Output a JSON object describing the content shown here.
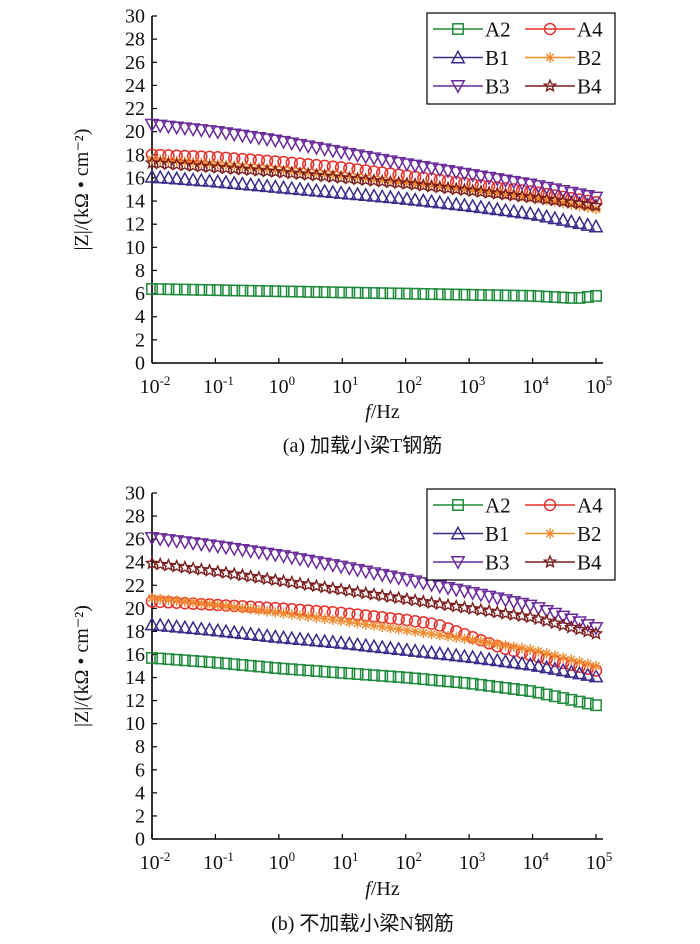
{
  "chart_data": [
    {
      "type": "scatter",
      "title": "(a) 加载小梁T钢筋",
      "xlabel_italic": "f",
      "xlabel_rest": "/Hz",
      "ylabel": "|Z|/(kΩ • cm⁻²)",
      "xscale": "log",
      "xlim": [
        0.01,
        100000
      ],
      "ylim": [
        0,
        30
      ],
      "yticks": [
        "0",
        "2",
        "4",
        "6",
        "8",
        "10",
        "12",
        "14",
        "16",
        "18",
        "20",
        "22",
        "24",
        "26",
        "28",
        "30"
      ],
      "xticks": [
        {
          "base": "10",
          "exp": "-2"
        },
        {
          "base": "10",
          "exp": "-1"
        },
        {
          "base": "10",
          "exp": "0"
        },
        {
          "base": "10",
          "exp": "1"
        },
        {
          "base": "10",
          "exp": "2"
        },
        {
          "base": "10",
          "exp": "3"
        },
        {
          "base": "10",
          "exp": "4"
        },
        {
          "base": "10",
          "exp": "5"
        }
      ],
      "legend_position": "top-right",
      "series": [
        {
          "name": "A2",
          "marker": "square",
          "color": "#1e8a3c",
          "x_log": [
            -2,
            -1,
            0,
            1,
            2,
            3,
            4,
            4.7,
            5
          ],
          "y": [
            6.4,
            6.3,
            6.2,
            6.1,
            6.0,
            5.9,
            5.8,
            5.6,
            5.8
          ]
        },
        {
          "name": "A4",
          "marker": "circle",
          "color": "#e8302a",
          "x_log": [
            -2,
            -1,
            0,
            1,
            2,
            3,
            4,
            5
          ],
          "y": [
            18.0,
            17.8,
            17.4,
            16.9,
            16.2,
            15.5,
            14.8,
            13.9
          ]
        },
        {
          "name": "B1",
          "marker": "triangle-up",
          "color": "#3b2a8c",
          "x_log": [
            -2,
            -1,
            0,
            1,
            2,
            3,
            4,
            5
          ],
          "y": [
            16.1,
            15.7,
            15.2,
            14.7,
            14.2,
            13.6,
            12.9,
            11.8
          ]
        },
        {
          "name": "B2",
          "marker": "asterisk",
          "color": "#f28a2e",
          "x_log": [
            -2,
            -1,
            0,
            1,
            2,
            3,
            4,
            5
          ],
          "y": [
            17.6,
            17.2,
            16.7,
            16.2,
            15.6,
            15.0,
            14.3,
            13.3
          ]
        },
        {
          "name": "B3",
          "marker": "triangle-down",
          "color": "#6a2a9c",
          "x_log": [
            -2,
            -1,
            0,
            1,
            2,
            3,
            4,
            5
          ],
          "y": [
            20.6,
            20.0,
            19.2,
            18.2,
            17.2,
            16.3,
            15.4,
            14.3
          ]
        },
        {
          "name": "B4",
          "marker": "star",
          "color": "#7a1e1e",
          "x_log": [
            -2,
            -1,
            0,
            1,
            2,
            3,
            4,
            5
          ],
          "y": [
            17.3,
            16.9,
            16.5,
            16.0,
            15.5,
            14.9,
            14.3,
            13.6
          ]
        }
      ]
    },
    {
      "type": "scatter",
      "title": "(b) 不加载小梁N钢筋",
      "xlabel_italic": "f",
      "xlabel_rest": "/Hz",
      "ylabel": "|Z|/(kΩ • cm⁻²)",
      "xscale": "log",
      "xlim": [
        0.01,
        100000
      ],
      "ylim": [
        0,
        30
      ],
      "yticks": [
        "0",
        "2",
        "4",
        "6",
        "8",
        "10",
        "12",
        "14",
        "16",
        "18",
        "20",
        "22",
        "24",
        "26",
        "28",
        "30"
      ],
      "xticks": [
        {
          "base": "10",
          "exp": "-2"
        },
        {
          "base": "10",
          "exp": "-1"
        },
        {
          "base": "10",
          "exp": "0"
        },
        {
          "base": "10",
          "exp": "1"
        },
        {
          "base": "10",
          "exp": "2"
        },
        {
          "base": "10",
          "exp": "3"
        },
        {
          "base": "10",
          "exp": "4"
        },
        {
          "base": "10",
          "exp": "5"
        }
      ],
      "legend_position": "top-right",
      "series": [
        {
          "name": "A2",
          "marker": "square",
          "color": "#1e8a3c",
          "x_log": [
            -2,
            -1,
            0,
            1,
            2,
            3,
            4,
            5
          ],
          "y": [
            15.7,
            15.3,
            14.8,
            14.4,
            14.0,
            13.5,
            12.8,
            11.6
          ]
        },
        {
          "name": "A4",
          "marker": "circle",
          "color": "#e8302a",
          "x_log": [
            -2,
            -1,
            0,
            1,
            2,
            2.5,
            3,
            3.5,
            4,
            5
          ],
          "y": [
            20.6,
            20.3,
            20.0,
            19.6,
            19.0,
            18.6,
            17.6,
            16.6,
            15.9,
            14.6
          ]
        },
        {
          "name": "B1",
          "marker": "triangle-up",
          "color": "#3b2a8c",
          "x_log": [
            -2,
            -1,
            0,
            1,
            2,
            3,
            4,
            5
          ],
          "y": [
            18.6,
            18.1,
            17.5,
            17.0,
            16.4,
            15.8,
            15.1,
            14.1
          ]
        },
        {
          "name": "B2",
          "marker": "asterisk",
          "color": "#f28a2e",
          "x_log": [
            -2,
            -1,
            0,
            1,
            2,
            3,
            4,
            5
          ],
          "y": [
            20.9,
            20.3,
            19.6,
            18.9,
            18.1,
            17.3,
            16.4,
            15.0
          ]
        },
        {
          "name": "B3",
          "marker": "triangle-down",
          "color": "#6a2a9c",
          "x_log": [
            -2,
            -1,
            0,
            1,
            2,
            3,
            4,
            5
          ],
          "y": [
            26.1,
            25.4,
            24.6,
            23.6,
            22.5,
            21.4,
            20.2,
            18.3
          ]
        },
        {
          "name": "B4",
          "marker": "star",
          "color": "#7a1e1e",
          "x_log": [
            -2,
            -1,
            0,
            1,
            2,
            3,
            4,
            5
          ],
          "y": [
            23.9,
            23.2,
            22.4,
            21.6,
            20.8,
            20.0,
            19.2,
            17.8
          ]
        }
      ]
    }
  ]
}
